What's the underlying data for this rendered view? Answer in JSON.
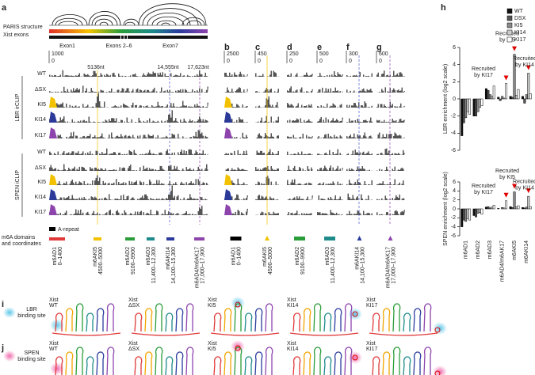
{
  "panel_letters": [
    "a",
    "b",
    "c",
    "d",
    "e",
    "f",
    "g",
    "h",
    "i",
    "j"
  ],
  "panel_a": {
    "track_labels": [
      "PARIS structure",
      "Xist exons"
    ],
    "exons": [
      "Exon1",
      "Exons 2–6",
      "Exon7"
    ],
    "scale_top": "1000",
    "scale_zero": "0",
    "positions": [
      "5136nt",
      "14,555nt",
      "17,623nt"
    ],
    "groups": [
      "LBR irCLIP",
      "SPEN iCLIP"
    ],
    "rows": [
      "WT",
      "ΔSX",
      "KI5",
      "KI14",
      "KI17"
    ],
    "legend": "A-repeat",
    "domains_label": [
      "m6A domains",
      "and coordinates"
    ],
    "domains": [
      {
        "name": "m6AD1",
        "range": "0–1400"
      },
      {
        "name": "m6AKI5",
        "range": "4500–5000"
      },
      {
        "name": "m6AD2",
        "range": "9100–9900"
      },
      {
        "name": "m6AD3",
        "range": "11,400–12,300"
      },
      {
        "name": "m6AKI14",
        "range": "14,100–15,300"
      },
      {
        "name": "m6AD4/m6AK17",
        "range": "17,000–17,900"
      }
    ]
  },
  "columns": [
    {
      "top": "2500",
      "zero": "0"
    },
    {
      "top": "450",
      "zero": "0"
    },
    {
      "top": "250",
      "zero": "0"
    },
    {
      "top": "500",
      "zero": "0"
    },
    {
      "top": "300",
      "zero": "0"
    },
    {
      "top": "600",
      "zero": "0"
    }
  ],
  "panel_i": {
    "label": [
      "LBR",
      "binding site"
    ],
    "names": [
      [
        "Xist",
        "WT"
      ],
      [
        "Xist",
        "ΔSX"
      ],
      [
        "Xist",
        "KI5"
      ],
      [
        "Xist",
        "KI14"
      ],
      [
        "Xist",
        "KI17"
      ]
    ]
  },
  "panel_j": {
    "label": [
      "SPEN",
      "binding site"
    ],
    "names": [
      [
        "Xist",
        "WT"
      ],
      [
        "Xist",
        "ΔSX"
      ],
      [
        "Xist",
        "KI5"
      ],
      [
        "Xist",
        "KI14"
      ],
      [
        "Xist",
        "KI17"
      ]
    ]
  },
  "chart_data": [
    {
      "type": "bar",
      "ylabel": "LBR enrichment (log2 scale)",
      "legend": "top-right",
      "categories": [
        "m6AD1",
        "m6AD2",
        "m6AD3",
        "m6AD4/m6AK17",
        "m6AKI5",
        "m6AKI14"
      ],
      "ylim": [
        -6,
        6
      ],
      "yticks": [
        -6,
        -4,
        -2,
        0,
        2,
        4,
        6
      ],
      "series": [
        {
          "name": "WT",
          "color": "#111111",
          "values": [
            -4.3,
            -2,
            1.2,
            0.2,
            0.3,
            0.3
          ]
        },
        {
          "name": "DSX",
          "color": "#555555",
          "values": [
            -2.8,
            -2,
            1,
            -0.2,
            0.2,
            -0.5
          ]
        },
        {
          "name": "KI5",
          "color": "#888888",
          "values": [
            -2.2,
            -1.5,
            0.5,
            0.3,
            5.2,
            0.5
          ]
        },
        {
          "name": "KI14",
          "color": "#cccccc",
          "values": [
            -1.5,
            -1,
            0.3,
            0.1,
            0.4,
            3
          ]
        },
        {
          "name": "KI17",
          "color": "#ffffff",
          "values": [
            -1.8,
            -0.8,
            1.5,
            1.8,
            1.1,
            0.6
          ]
        }
      ],
      "annotations": [
        [
          "Recruited",
          "by KI17"
        ],
        [
          "Recruited",
          "by KI5"
        ],
        [
          "Recruited",
          "by KI14"
        ]
      ]
    },
    {
      "type": "bar",
      "ylabel": "SPEN enrichment (log2 scale)",
      "categories": [
        "m6AD1",
        "m6AD2",
        "m6AD3",
        "m6AD4/m6AK17",
        "m6AKI5",
        "m6AKI14"
      ],
      "ylim": [
        -6,
        6
      ],
      "yticks": [
        -6,
        -4,
        -2,
        0,
        2,
        4,
        6
      ],
      "series": [
        {
          "name": "WT",
          "color": "#111111",
          "values": [
            -4,
            -1.5,
            0.4,
            0.1,
            0.5,
            0.3
          ]
        },
        {
          "name": "DSX",
          "color": "#555555",
          "values": [
            -2.5,
            -1.8,
            0.5,
            0,
            0.3,
            0.2
          ]
        },
        {
          "name": "KI5",
          "color": "#888888",
          "values": [
            -2.8,
            -1,
            0.2,
            0.3,
            3.8,
            0.4
          ]
        },
        {
          "name": "KI14",
          "color": "#cccccc",
          "values": [
            -2.2,
            -0.8,
            0.4,
            0.2,
            0.4,
            2.8
          ]
        },
        {
          "name": "KI17",
          "color": "#ffffff",
          "values": [
            -2.5,
            -1.2,
            0.8,
            1.8,
            0.7,
            0.5
          ]
        }
      ],
      "annotations": [
        [
          "Recruited",
          "by KI17"
        ],
        [
          "Recruited",
          "by KI5"
        ],
        [
          "Recruited",
          "by KI14"
        ]
      ]
    }
  ]
}
